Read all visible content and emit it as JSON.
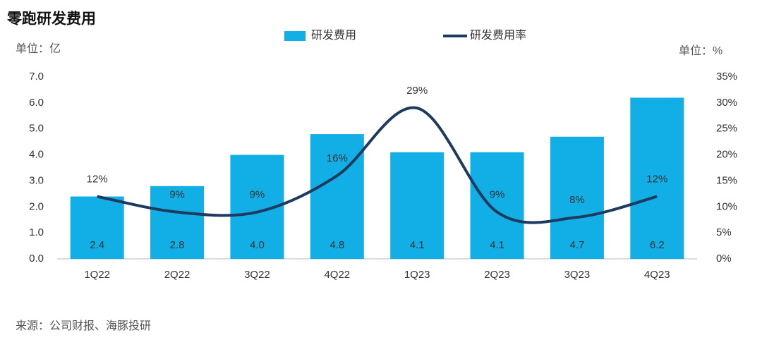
{
  "chart_data": {
    "type": "bar",
    "title": "零跑研发费用",
    "y_unit": "单位：亿",
    "y2_unit": "单位：%",
    "source": "来源：公司财报、海豚投研",
    "categories": [
      "1Q22",
      "2Q22",
      "3Q22",
      "4Q22",
      "1Q23",
      "2Q23",
      "3Q23",
      "4Q23"
    ],
    "series": [
      {
        "name": "研发费用",
        "type": "bar",
        "color": "#12aee6",
        "values": [
          2.4,
          2.8,
          4.0,
          4.8,
          4.1,
          4.1,
          4.7,
          6.2
        ],
        "value_labels": [
          "2.4",
          "2.8",
          "4.0",
          "4.8",
          "4.1",
          "4.1",
          "4.7",
          "6.2"
        ]
      },
      {
        "name": "研发费用率",
        "type": "line",
        "axis": "y2",
        "color": "#1f3a5f",
        "values": [
          12,
          9,
          9,
          16,
          29,
          9,
          8,
          12
        ],
        "value_labels": [
          "12%",
          "9%",
          "9%",
          "16%",
          "29%",
          "9%",
          "8%",
          "12%"
        ]
      }
    ],
    "ylim": [
      0,
      7
    ],
    "yticks": [
      {
        "value": 0,
        "label": "0.0"
      },
      {
        "value": 1,
        "label": "1.0"
      },
      {
        "value": 2,
        "label": "2.0"
      },
      {
        "value": 3,
        "label": "3.0"
      },
      {
        "value": 4,
        "label": "4.0"
      },
      {
        "value": 5,
        "label": "5.0"
      },
      {
        "value": 6,
        "label": "6.0"
      },
      {
        "value": 7,
        "label": "7.0"
      }
    ],
    "y2lim": [
      0,
      35
    ],
    "y2ticks": [
      {
        "value": 0,
        "label": "0%"
      },
      {
        "value": 5,
        "label": "5%"
      },
      {
        "value": 10,
        "label": "10%"
      },
      {
        "value": 15,
        "label": "15%"
      },
      {
        "value": 20,
        "label": "20%"
      },
      {
        "value": 25,
        "label": "25%"
      },
      {
        "value": 30,
        "label": "30%"
      },
      {
        "value": 35,
        "label": "35%"
      }
    ],
    "grid": false
  }
}
